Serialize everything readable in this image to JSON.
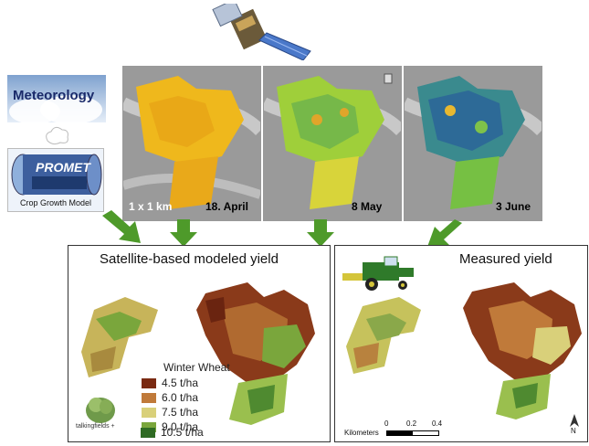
{
  "meteorology_label": "Meteorology",
  "promet_label": "PROMET",
  "crop_model_label": "Crop Growth Model",
  "panels": [
    {
      "date": "18. April",
      "scale": "1 x 1 km"
    },
    {
      "date": "8 May"
    },
    {
      "date": "3 June"
    }
  ],
  "left_box": {
    "title": "Satellite-based modeled yield"
  },
  "right_box": {
    "title": "Measured yield"
  },
  "legend": {
    "title": "Winter Wheat",
    "items": [
      {
        "label": "4.5  t/ha",
        "color": "#7a2a12"
      },
      {
        "label": "6.0  t/ha",
        "color": "#c07a3a"
      },
      {
        "label": "7.5  t/ha",
        "color": "#d9d07a"
      },
      {
        "label": "9.0  t/ha",
        "color": "#7aa63c"
      },
      {
        "label": "10.5 t/ha",
        "color": "#2f6b24"
      }
    ]
  },
  "logo_text": "talkingfields +",
  "scalebar": {
    "unit": "Kilometers",
    "ticks": [
      "0",
      "0.2",
      "0.4"
    ]
  },
  "north": "N"
}
